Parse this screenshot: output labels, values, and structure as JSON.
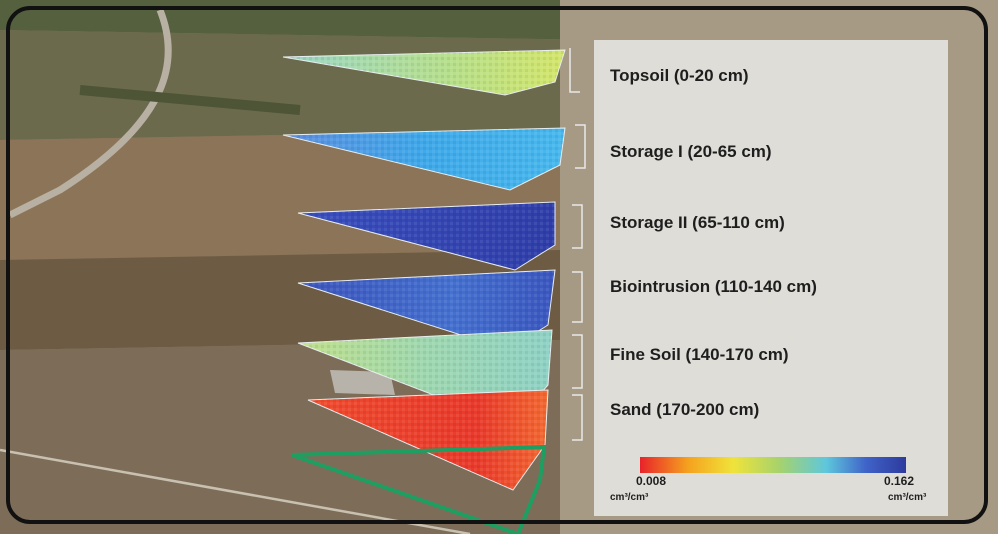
{
  "layers": [
    {
      "label": "Topsoil (0-20 cm)",
      "level": "0.10"
    },
    {
      "label": "Storage I (20-65 cm)",
      "level": "0.13"
    },
    {
      "label": "Storage II (65-110 cm)",
      "level": "0.16"
    },
    {
      "label": "Biointrusion (110-140 cm)",
      "level": "0.15"
    },
    {
      "label": "Fine Soil (140-170 cm)",
      "level": "0.09"
    },
    {
      "label": "Sand (170-200 cm)",
      "level": "0.01"
    }
  ],
  "colorbar": {
    "min": "0.008",
    "max": "0.162",
    "unit": "cm³/cm³",
    "colors": [
      "#e8232a",
      "#f5a21e",
      "#f0e33a",
      "#a8d36a",
      "#5ec7dc",
      "#3f63c8",
      "#2e3a9e"
    ]
  },
  "colors": {
    "topsoil": "#b6df86",
    "storage_1": "#3fa7e6",
    "storage_2": "#3448b8",
    "biointrusion": "#3d62c7",
    "fine_soil": "#a4d99e",
    "sand": "#ee3c2f",
    "outline_green": "#1f9e61"
  }
}
